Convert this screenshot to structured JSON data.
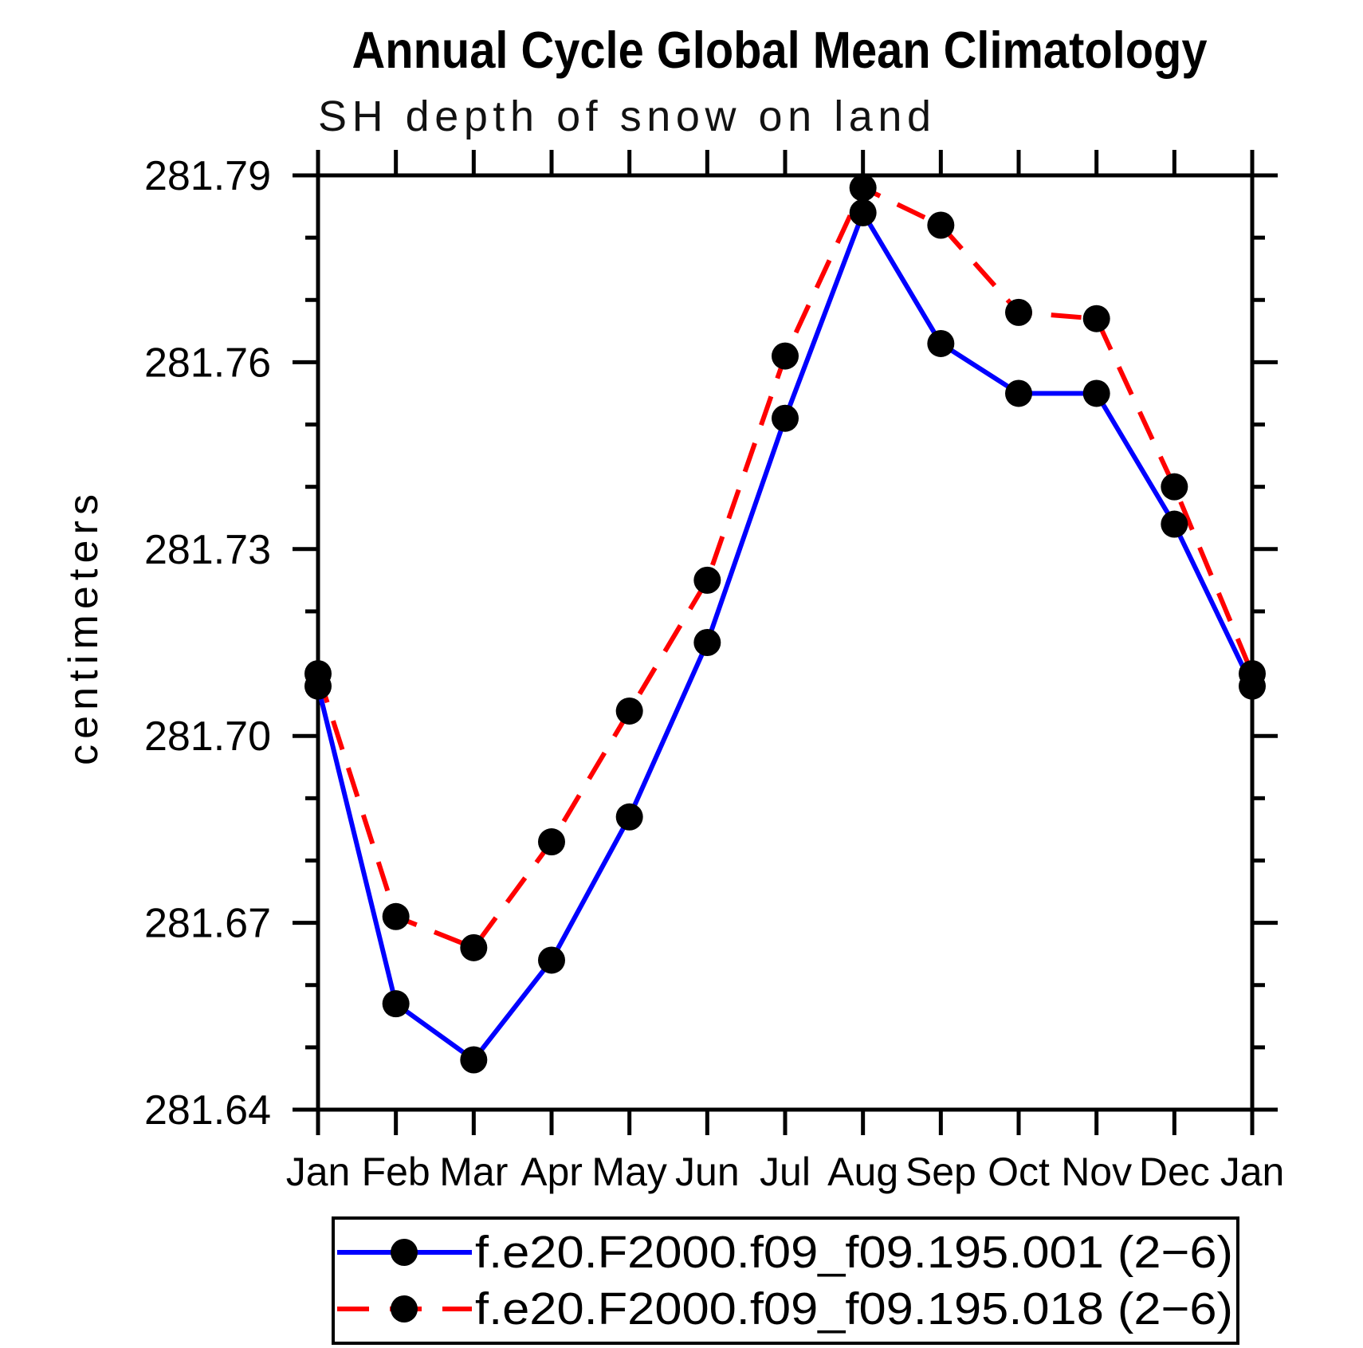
{
  "chart_data": {
    "type": "line",
    "title": "Annual Cycle Global Mean Climatology",
    "subtitle": "SH depth of snow on land",
    "ylabel": "centimeters",
    "categories": [
      "Jan",
      "Feb",
      "Mar",
      "Apr",
      "May",
      "Jun",
      "Jul",
      "Aug",
      "Sep",
      "Oct",
      "Nov",
      "Dec",
      "Jan"
    ],
    "series": [
      {
        "name": "f.e20.F2000.f09_f09.195.001 (2−6)",
        "color": "#0000ff",
        "line_style": "solid",
        "marker": "filled-circle",
        "values": [
          281.708,
          281.657,
          281.648,
          281.664,
          281.687,
          281.715,
          281.751,
          281.784,
          281.763,
          281.755,
          281.755,
          281.734,
          281.708
        ]
      },
      {
        "name": "f.e20.F2000.f09_f09.195.018 (2−6)",
        "color": "#ff0000",
        "line_style": "dashed",
        "marker": "filled-circle",
        "values": [
          281.71,
          281.671,
          281.666,
          281.683,
          281.704,
          281.725,
          281.761,
          281.788,
          281.782,
          281.768,
          281.767,
          281.74,
          281.71
        ]
      }
    ],
    "ylim": [
      281.64,
      281.79
    ],
    "ytick_major_step": 0.03,
    "ytick_minor_step": 0.01,
    "ytick_labels": [
      "281.64",
      "281.67",
      "281.70",
      "281.73",
      "281.76",
      "281.79"
    ],
    "grid": false,
    "legend_position": "bottom",
    "marker_color": "#000000",
    "axis_color": "#000000",
    "background_color": "#ffffff"
  }
}
